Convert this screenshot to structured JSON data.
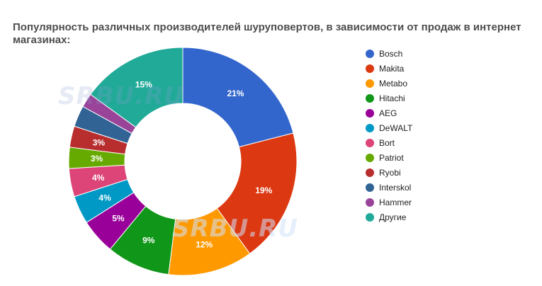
{
  "title": "Популярность различных производителей шуруповертов, в зависимости от продаж в интернет магазинах:",
  "watermark": "SRBU.RU",
  "chart_data": {
    "type": "pie",
    "title": "Популярность различных производителей шуруповертов, в зависимости от продаж в интернет магазинах:",
    "donut": true,
    "legend_position": "right",
    "labels": [
      "Bosch",
      "Makita",
      "Metabo",
      "Hitachi",
      "AEG",
      "DeWALT",
      "Bort",
      "Patriot",
      "Ryobi",
      "Interskol",
      "Hammer",
      "Другие"
    ],
    "values": [
      21,
      19,
      12,
      9,
      5,
      4,
      4,
      3,
      3,
      3,
      2,
      15
    ],
    "data_labels": [
      "21%",
      "19%",
      "12%",
      "9%",
      "5%",
      "4%",
      "4%",
      "3%",
      "3%",
      "",
      "",
      "15%"
    ],
    "colors": [
      "#3366cc",
      "#dc3912",
      "#ff9900",
      "#109618",
      "#990099",
      "#0099c6",
      "#dd4477",
      "#66aa00",
      "#b82e2e",
      "#316395",
      "#994499",
      "#22aa99"
    ]
  }
}
